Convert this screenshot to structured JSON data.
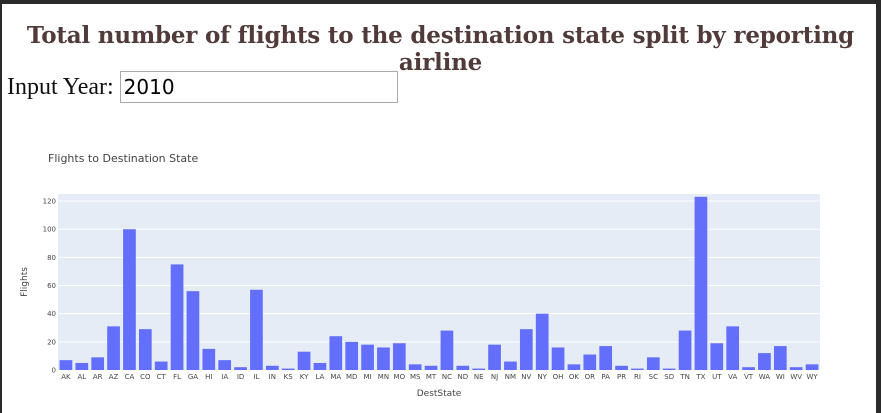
{
  "header": {
    "title": "Total number of flights to the destination state split by reporting airline"
  },
  "year_input": {
    "label": "Input Year:",
    "value": "2010"
  },
  "colors": {
    "bar": "#636efa",
    "plot_bg": "#e5ecf6",
    "title_text": "#503a3a"
  },
  "chart_data": {
    "type": "bar",
    "title": "Flights to Destination State",
    "xlabel": "DestState",
    "ylabel": "Flights",
    "ylim": [
      0,
      125
    ],
    "yticks": [
      0,
      20,
      40,
      60,
      80,
      100,
      120
    ],
    "grid": true,
    "categories": [
      "AK",
      "AL",
      "AR",
      "AZ",
      "CA",
      "CO",
      "CT",
      "FL",
      "GA",
      "HI",
      "IA",
      "ID",
      "IL",
      "IN",
      "KS",
      "KY",
      "LA",
      "MA",
      "MD",
      "MI",
      "MN",
      "MO",
      "MS",
      "MT",
      "NC",
      "ND",
      "NE",
      "NJ",
      "NM",
      "NV",
      "NY",
      "OH",
      "OK",
      "OR",
      "PA",
      "PR",
      "RI",
      "SC",
      "SD",
      "TN",
      "TX",
      "UT",
      "VA",
      "VT",
      "WA",
      "WI",
      "WV",
      "WY"
    ],
    "values": [
      7,
      5,
      9,
      31,
      100,
      29,
      6,
      75,
      56,
      15,
      7,
      2,
      57,
      3,
      1,
      13,
      5,
      24,
      20,
      18,
      16,
      19,
      4,
      3,
      28,
      3,
      1,
      18,
      6,
      29,
      40,
      16,
      4,
      11,
      17,
      3,
      1,
      9,
      1,
      28,
      123,
      19,
      31,
      2,
      12,
      17,
      2,
      4
    ]
  }
}
